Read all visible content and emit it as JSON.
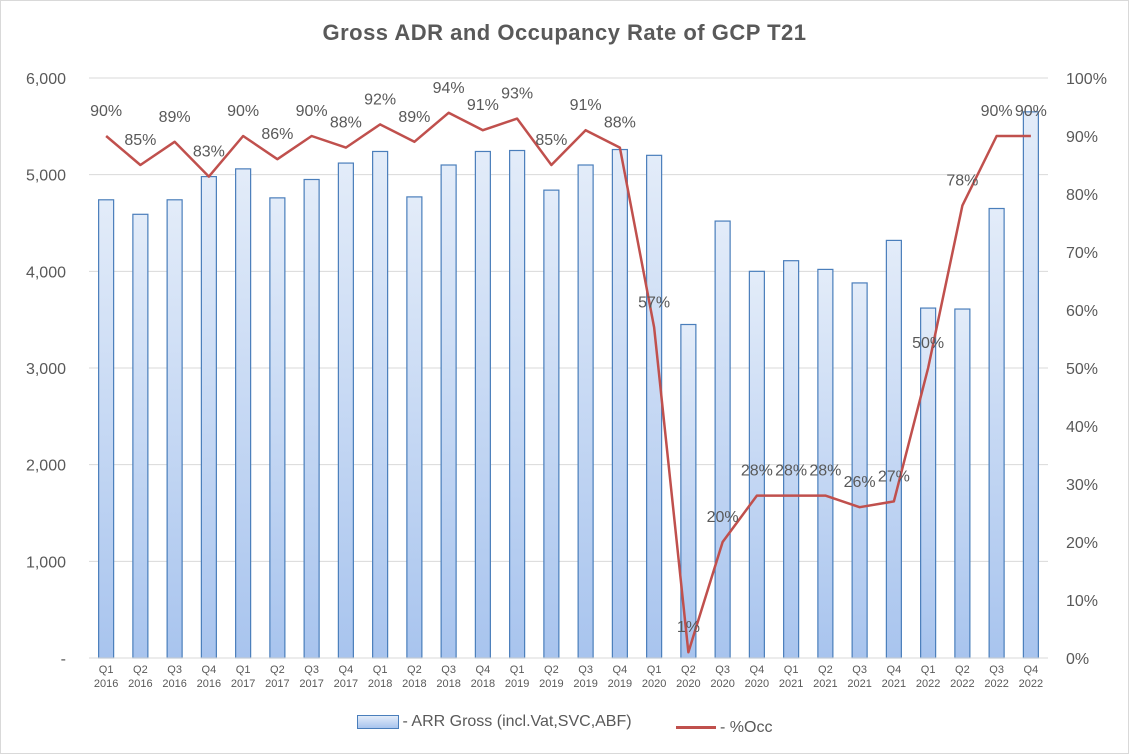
{
  "chart_data": {
    "type": "bar+line",
    "title": "Gross ADR and Occupancy Rate of GCP T21",
    "categories": [
      [
        "Q1",
        "2016"
      ],
      [
        "Q2",
        "2016"
      ],
      [
        "Q3",
        "2016"
      ],
      [
        "Q4",
        "2016"
      ],
      [
        "Q1",
        "2017"
      ],
      [
        "Q2",
        "2017"
      ],
      [
        "Q3",
        "2017"
      ],
      [
        "Q4",
        "2017"
      ],
      [
        "Q1",
        "2018"
      ],
      [
        "Q2",
        "2018"
      ],
      [
        "Q3",
        "2018"
      ],
      [
        "Q4",
        "2018"
      ],
      [
        "Q1",
        "2019"
      ],
      [
        "Q2",
        "2019"
      ],
      [
        "Q3",
        "2019"
      ],
      [
        "Q4",
        "2019"
      ],
      [
        "Q1",
        "2020"
      ],
      [
        "Q2",
        "2020"
      ],
      [
        "Q3",
        "2020"
      ],
      [
        "Q4",
        "2020"
      ],
      [
        "Q1",
        "2021"
      ],
      [
        "Q2",
        "2021"
      ],
      [
        "Q3",
        "2021"
      ],
      [
        "Q4",
        "2021"
      ],
      [
        "Q1",
        "2022"
      ],
      [
        "Q2",
        "2022"
      ],
      [
        "Q3",
        "2022"
      ],
      [
        "Q4",
        "2022"
      ]
    ],
    "series": [
      {
        "name": "- ARR Gross (incl.Vat,SVC,ABF)",
        "type": "bar",
        "axis": "left",
        "values": [
          4740,
          4590,
          4740,
          4980,
          5060,
          4760,
          4950,
          5120,
          5240,
          4770,
          5100,
          5240,
          5250,
          4840,
          5100,
          5260,
          5200,
          3450,
          4520,
          4000,
          4110,
          4020,
          3880,
          4320,
          3620,
          3610,
          4650,
          5650
        ]
      },
      {
        "name": "- %Occ",
        "type": "line",
        "axis": "right",
        "values": [
          90,
          85,
          89,
          83,
          90,
          86,
          90,
          88,
          92,
          89,
          94,
          91,
          93,
          85,
          91,
          88,
          57,
          1,
          20,
          28,
          28,
          28,
          26,
          27,
          50,
          78,
          90,
          90
        ],
        "labels": [
          "90%",
          "85%",
          "89%",
          "83%",
          "90%",
          "86%",
          "90%",
          "88%",
          "92%",
          "89%",
          "94%",
          "91%",
          "93%",
          "85%",
          "91%",
          "88%",
          "57%",
          "1%",
          "20%",
          "28%",
          "28%",
          "28%",
          "26%",
          "27%",
          "50%",
          "78%",
          "90%",
          "90%"
        ]
      }
    ],
    "y_left": {
      "range": [
        0,
        6000
      ],
      "ticks": [
        "-",
        "1,000",
        "2,000",
        "3,000",
        "4,000",
        "5,000",
        "6,000"
      ]
    },
    "y_right": {
      "range": [
        0,
        100
      ],
      "ticks": [
        "0%",
        "10%",
        "20%",
        "30%",
        "40%",
        "50%",
        "60%",
        "70%",
        "80%",
        "90%",
        "100%"
      ]
    },
    "grid": true,
    "legend_position": "bottom",
    "colors": {
      "bar_fill_top": "#e3ecf9",
      "bar_fill_bottom": "#a8c4ee",
      "bar_stroke": "#4a7ebb",
      "line": "#c0504d",
      "grid": "#d9d9d9",
      "text": "#595959"
    }
  },
  "legend": {
    "bar_label": "- ARR Gross (incl.Vat,SVC,ABF)",
    "line_label": "- %Occ"
  }
}
